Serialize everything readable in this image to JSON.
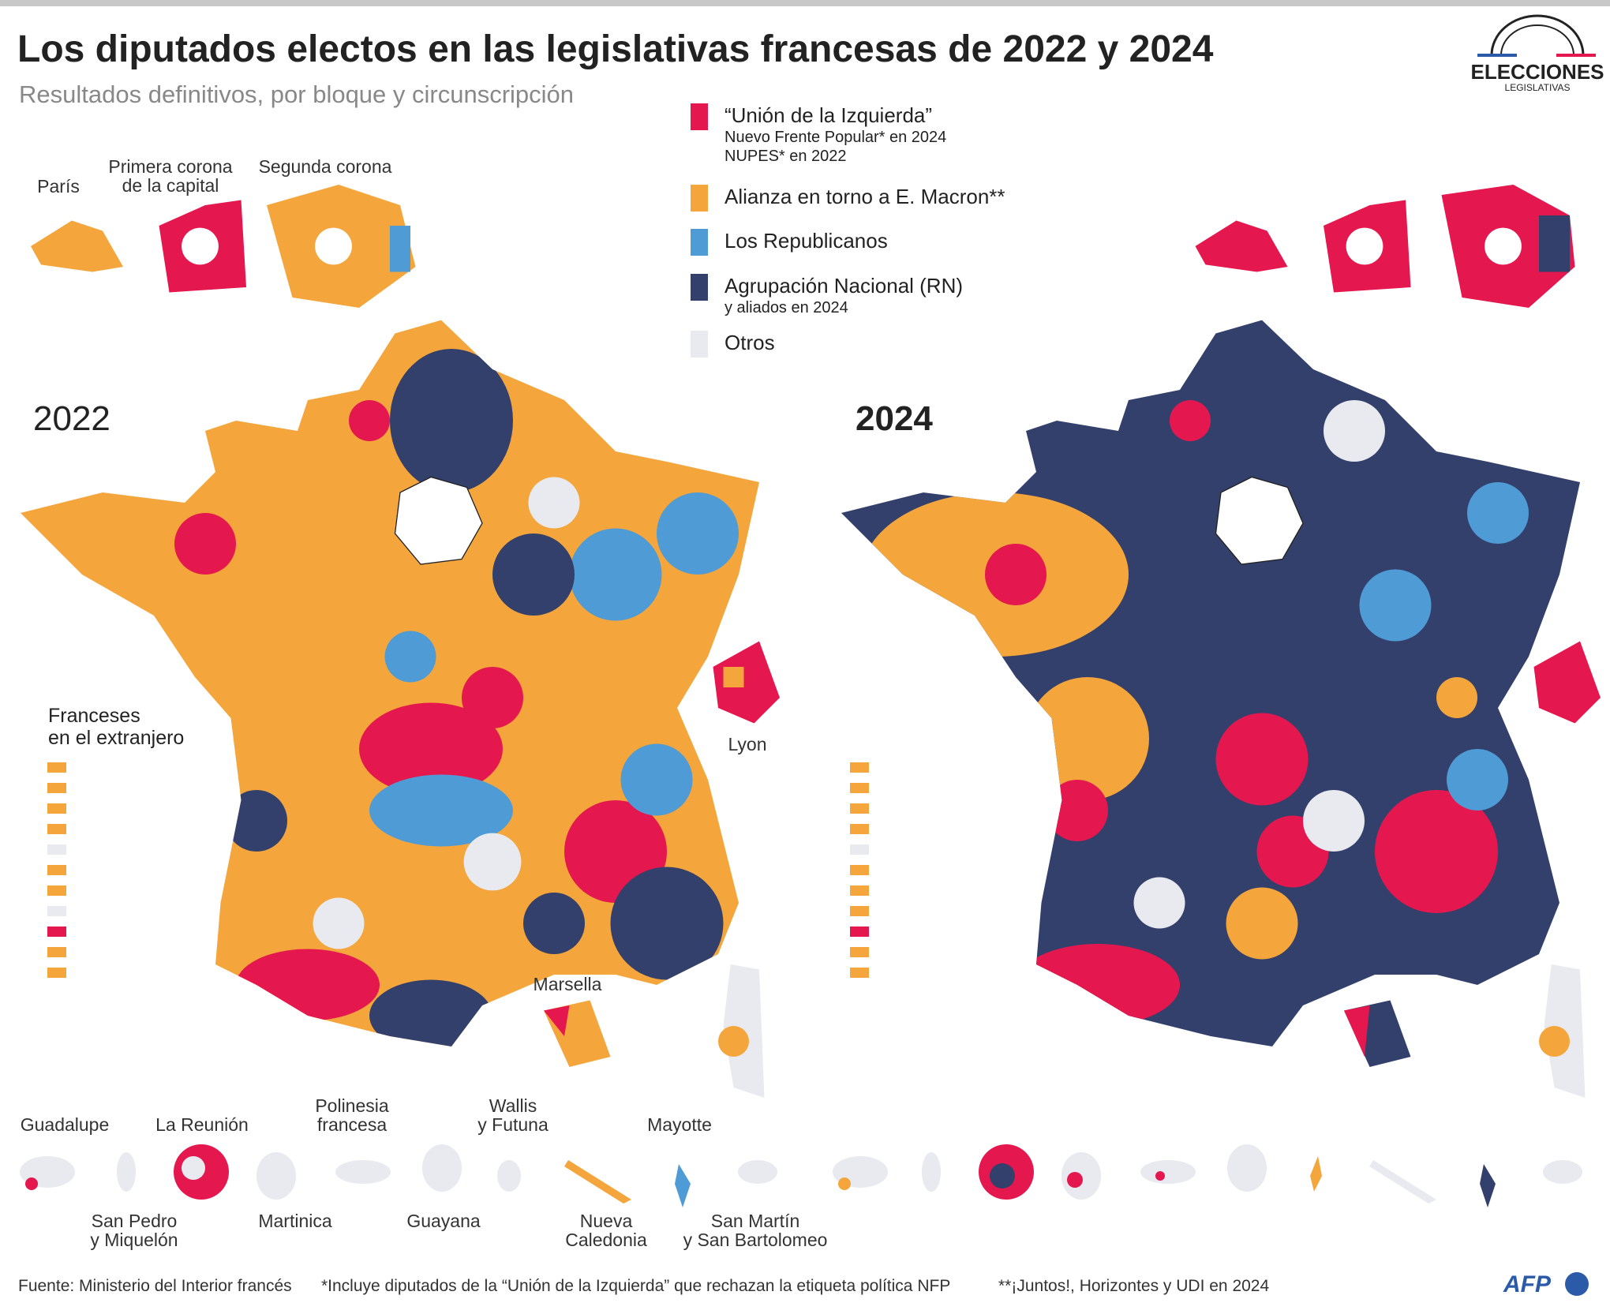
{
  "header": {
    "title": "Los diputados electos en las legislativas francesas de 2022 y 2024",
    "subtitle": "Resultados definitivos, por bloque y circunscripción",
    "logo": {
      "title": "ELECCIONES",
      "subtitle": "LEGISLATIVAS"
    }
  },
  "legend": [
    {
      "label": "“Unión de la Izquierda”",
      "notes": [
        "Nuevo Frente Popular* en 2024",
        "NUPES* en 2022"
      ],
      "color": "#e5174f"
    },
    {
      "label": "Alianza en torno a E. Macron**",
      "notes": [],
      "color": "#f4a53b"
    },
    {
      "label": "Los Republicanos",
      "notes": [],
      "color": "#4e9bd6"
    },
    {
      "label": "Agrupación Nacional (RN)",
      "notes": [
        "y aliados en 2024"
      ],
      "color": "#33406b"
    },
    {
      "label": "Otros",
      "notes": [],
      "color": "#e8eaef"
    }
  ],
  "maps": [
    {
      "year": "2022"
    },
    {
      "year": "2024"
    }
  ],
  "inset_labels": {
    "paris": "París",
    "first_ring": [
      "Primera corona",
      "de la capital"
    ],
    "second_ring": "Segunda corona"
  },
  "abroad_label": [
    "Franceses",
    "en el extranjero"
  ],
  "city_labels": {
    "lyon": "Lyon",
    "marseille": "Marsella"
  },
  "overseas": {
    "top": [
      [
        "Guadalupe"
      ],
      [
        "La Reunión"
      ],
      [
        "Polinesia",
        "francesa"
      ],
      [
        "Wallis",
        "y Futuna"
      ],
      [
        "Mayotte"
      ]
    ],
    "bottom": [
      [
        "San Pedro",
        "y Miquelón"
      ],
      [
        "Martinica"
      ],
      [
        "Guayana"
      ],
      [
        "Nueva",
        "Caledonia"
      ],
      [
        "San Martín",
        "y San Bartolomeo"
      ]
    ]
  },
  "footer": {
    "source": "Fuente: Ministerio del Interior francés",
    "note1": "*Incluye diputados de la “Unión de la Izquierda” que rechazan la etiqueta política NFP",
    "note2": "**¡Juntos!, Horizontes y UDI en 2024",
    "logo": "AFP"
  }
}
